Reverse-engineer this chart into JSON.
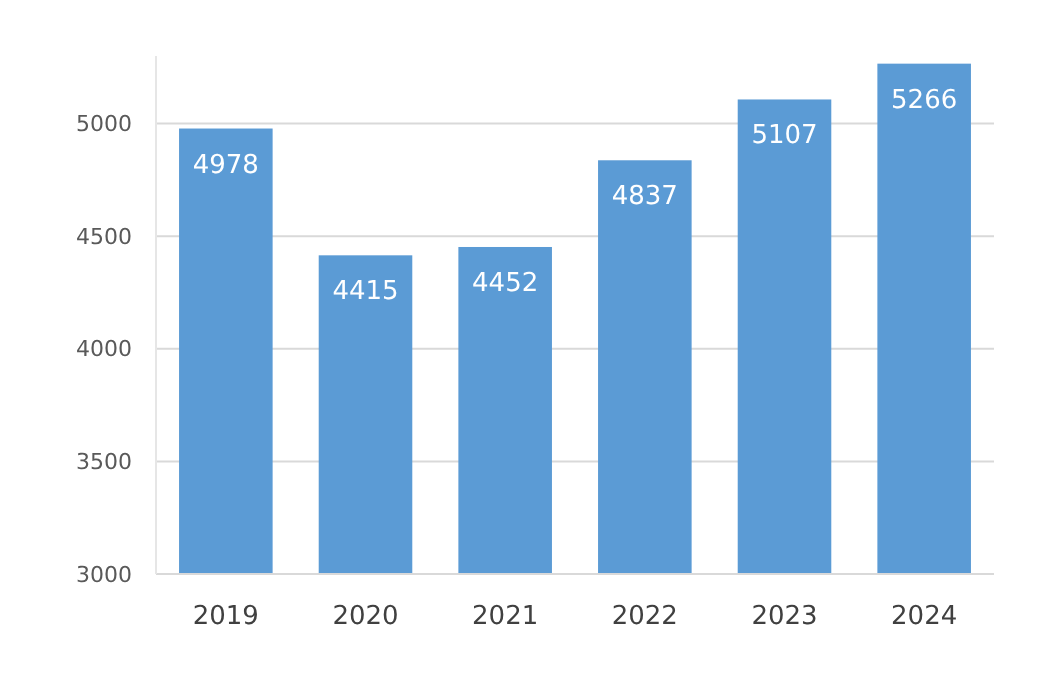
{
  "chart_data": {
    "type": "bar",
    "categories": [
      "2019",
      "2020",
      "2021",
      "2022",
      "2023",
      "2024"
    ],
    "values": [
      4978,
      4415,
      4452,
      4837,
      5107,
      5266
    ],
    "color": "#5b9bd5",
    "ylim": [
      3000,
      5300
    ],
    "yticks": [
      3000,
      3500,
      4000,
      4500,
      5000
    ],
    "grid": "y",
    "data_labels": true
  }
}
